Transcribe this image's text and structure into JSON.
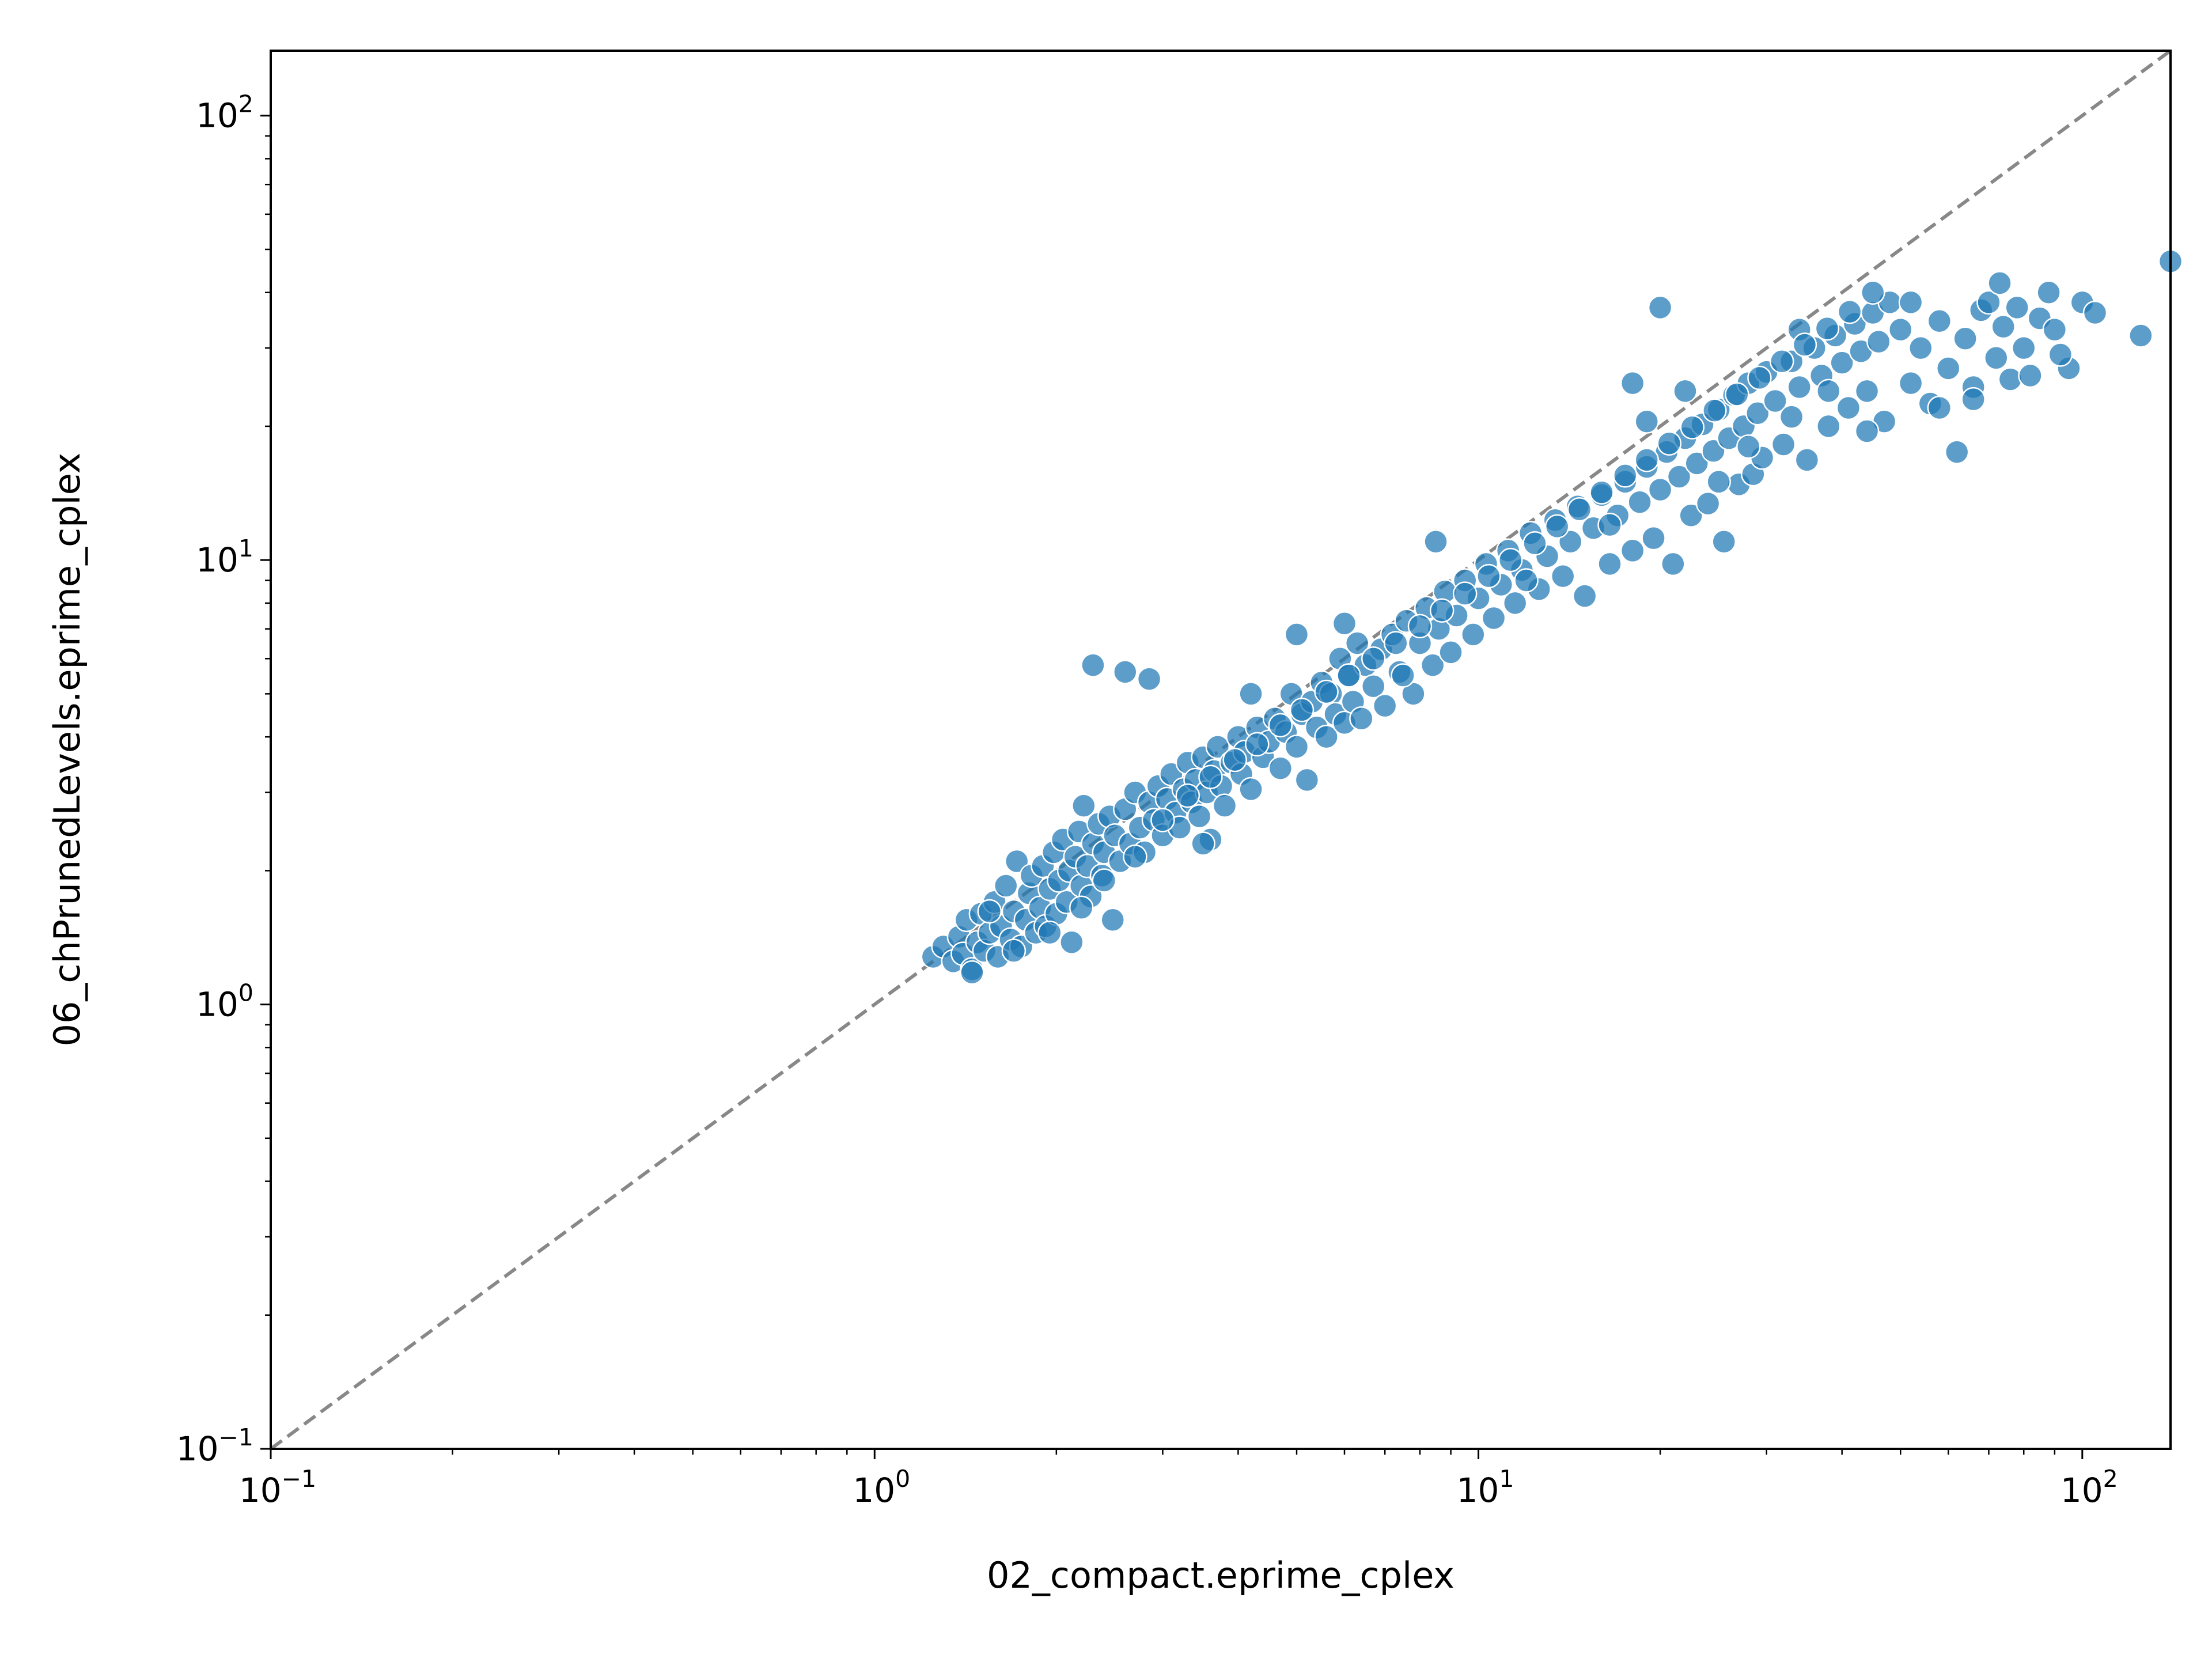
{
  "chart_data": {
    "type": "scatter",
    "title": "",
    "xlabel": "02_compact.eprime_cplex",
    "ylabel": "06_chPrunedLevels.eprime_cplex",
    "xscale": "log",
    "yscale": "log",
    "xlim": [
      0.1,
      140
    ],
    "ylim": [
      0.1,
      140
    ],
    "grid": false,
    "legend": "none",
    "x_ticks": [
      {
        "value": 0.1,
        "base": "10",
        "exp": "−1"
      },
      {
        "value": 1,
        "base": "10",
        "exp": "0"
      },
      {
        "value": 10,
        "base": "10",
        "exp": "1"
      },
      {
        "value": 100,
        "base": "10",
        "exp": "2"
      }
    ],
    "y_ticks": [
      {
        "value": 0.1,
        "base": "10",
        "exp": "−1"
      },
      {
        "value": 1,
        "base": "10",
        "exp": "0"
      },
      {
        "value": 10,
        "base": "10",
        "exp": "1"
      },
      {
        "value": 100,
        "base": "10",
        "exp": "2"
      }
    ],
    "reference_line": {
      "style": "dashed",
      "color": "#888888",
      "from": [
        0.1,
        0.1
      ],
      "to": [
        140,
        140
      ]
    },
    "marker_color": "#1f77b4",
    "marker_edge_color": "#ffffff",
    "points": [
      [
        1.25,
        1.28
      ],
      [
        1.3,
        1.35
      ],
      [
        1.35,
        1.25
      ],
      [
        1.38,
        1.42
      ],
      [
        1.4,
        1.3
      ],
      [
        1.42,
        1.55
      ],
      [
        1.45,
        1.2
      ],
      [
        1.48,
        1.38
      ],
      [
        1.5,
        1.6
      ],
      [
        1.52,
        1.32
      ],
      [
        1.55,
        1.45
      ],
      [
        1.58,
        1.7
      ],
      [
        1.6,
        1.28
      ],
      [
        1.62,
        1.5
      ],
      [
        1.65,
        1.85
      ],
      [
        1.68,
        1.4
      ],
      [
        1.7,
        1.62
      ],
      [
        1.72,
        2.1
      ],
      [
        1.75,
        1.35
      ],
      [
        1.78,
        1.55
      ],
      [
        1.8,
        1.78
      ],
      [
        1.82,
        1.95
      ],
      [
        1.85,
        1.45
      ],
      [
        1.88,
        1.65
      ],
      [
        1.9,
        2.05
      ],
      [
        1.92,
        1.5
      ],
      [
        1.95,
        1.82
      ],
      [
        1.98,
        2.2
      ],
      [
        2.0,
        1.6
      ],
      [
        2.02,
        1.9
      ],
      [
        2.05,
        2.35
      ],
      [
        2.08,
        1.7
      ],
      [
        2.1,
        2.0
      ],
      [
        2.12,
        1.38
      ],
      [
        2.15,
        2.15
      ],
      [
        2.18,
        2.45
      ],
      [
        2.2,
        1.85
      ],
      [
        2.22,
        2.8
      ],
      [
        2.25,
        2.05
      ],
      [
        2.28,
        1.75
      ],
      [
        2.3,
        2.3
      ],
      [
        2.35,
        2.55
      ],
      [
        2.38,
        1.95
      ],
      [
        2.4,
        2.2
      ],
      [
        2.45,
        2.65
      ],
      [
        2.48,
        1.55
      ],
      [
        2.5,
        2.4
      ],
      [
        2.55,
        2.1
      ],
      [
        2.6,
        2.75
      ],
      [
        2.65,
        2.3
      ],
      [
        2.7,
        3.0
      ],
      [
        2.75,
        2.5
      ],
      [
        2.8,
        2.2
      ],
      [
        2.85,
        2.85
      ],
      [
        2.9,
        2.6
      ],
      [
        2.95,
        3.1
      ],
      [
        3.0,
        2.4
      ],
      [
        3.05,
        2.9
      ],
      [
        3.1,
        3.3
      ],
      [
        3.15,
        2.7
      ],
      [
        3.2,
        2.5
      ],
      [
        3.25,
        3.05
      ],
      [
        3.3,
        3.5
      ],
      [
        3.35,
        2.85
      ],
      [
        3.4,
        3.2
      ],
      [
        3.45,
        2.65
      ],
      [
        3.5,
        3.6
      ],
      [
        3.55,
        3.0
      ],
      [
        3.6,
        2.35
      ],
      [
        3.65,
        3.35
      ],
      [
        3.7,
        3.8
      ],
      [
        3.75,
        3.1
      ],
      [
        3.8,
        2.8
      ],
      [
        3.9,
        3.5
      ],
      [
        4.0,
        4.0
      ],
      [
        4.05,
        3.3
      ],
      [
        4.1,
        3.7
      ],
      [
        4.2,
        3.05
      ],
      [
        4.3,
        4.2
      ],
      [
        4.4,
        3.6
      ],
      [
        4.5,
        3.9
      ],
      [
        4.6,
        4.4
      ],
      [
        4.7,
        3.4
      ],
      [
        4.8,
        4.1
      ],
      [
        4.9,
        5.0
      ],
      [
        5.0,
        3.8
      ],
      [
        5.1,
        4.5
      ],
      [
        5.2,
        3.2
      ],
      [
        5.3,
        4.8
      ],
      [
        5.4,
        4.2
      ],
      [
        5.5,
        5.3
      ],
      [
        5.6,
        4.0
      ],
      [
        5.7,
        5.0
      ],
      [
        5.8,
        4.5
      ],
      [
        5.9,
        6.0
      ],
      [
        6.0,
        4.3
      ],
      [
        6.1,
        5.5
      ],
      [
        6.2,
        4.8
      ],
      [
        6.3,
        6.5
      ],
      [
        6.4,
        4.4
      ],
      [
        6.5,
        5.8
      ],
      [
        6.7,
        5.2
      ],
      [
        6.9,
        6.3
      ],
      [
        7.0,
        4.7
      ],
      [
        7.2,
        6.8
      ],
      [
        7.4,
        5.6
      ],
      [
        7.6,
        7.3
      ],
      [
        7.8,
        5.0
      ],
      [
        8.0,
        6.5
      ],
      [
        8.2,
        7.8
      ],
      [
        8.4,
        5.8
      ],
      [
        8.6,
        7.0
      ],
      [
        8.8,
        8.5
      ],
      [
        9.0,
        6.2
      ],
      [
        9.2,
        7.5
      ],
      [
        9.5,
        9.0
      ],
      [
        9.8,
        6.8
      ],
      [
        10.0,
        8.2
      ],
      [
        10.3,
        9.8
      ],
      [
        10.6,
        7.4
      ],
      [
        10.9,
        8.8
      ],
      [
        11.2,
        10.5
      ],
      [
        11.5,
        8.0
      ],
      [
        11.8,
        9.5
      ],
      [
        12.2,
        11.5
      ],
      [
        12.6,
        8.6
      ],
      [
        13.0,
        10.2
      ],
      [
        13.4,
        12.3
      ],
      [
        13.8,
        9.2
      ],
      [
        14.2,
        11.0
      ],
      [
        14.6,
        13.2
      ],
      [
        15.0,
        8.3
      ],
      [
        15.5,
        11.8
      ],
      [
        16.0,
        14.0
      ],
      [
        16.5,
        9.8
      ],
      [
        17.0,
        12.6
      ],
      [
        17.5,
        15.0
      ],
      [
        18.0,
        10.5
      ],
      [
        18.5,
        13.5
      ],
      [
        19.0,
        16.2
      ],
      [
        19.5,
        11.2
      ],
      [
        20.0,
        14.4
      ],
      [
        20.5,
        17.5
      ],
      [
        21.0,
        9.8
      ],
      [
        21.5,
        15.4
      ],
      [
        22.0,
        18.8
      ],
      [
        22.5,
        12.6
      ],
      [
        23.0,
        16.5
      ],
      [
        23.5,
        20.2
      ],
      [
        24.0,
        13.4
      ],
      [
        24.5,
        17.6
      ],
      [
        25.0,
        21.8
      ],
      [
        25.5,
        11.0
      ],
      [
        26.0,
        18.8
      ],
      [
        26.5,
        23.5
      ],
      [
        27.0,
        14.8
      ],
      [
        27.5,
        20.0
      ],
      [
        28.0,
        25.0
      ],
      [
        28.5,
        15.6
      ],
      [
        29.0,
        21.4
      ],
      [
        29.5,
        17.0
      ],
      [
        30.0,
        26.5
      ],
      [
        31.0,
        22.8
      ],
      [
        32.0,
        18.2
      ],
      [
        33.0,
        28.0
      ],
      [
        34.0,
        24.5
      ],
      [
        35.0,
        16.8
      ],
      [
        36.0,
        30.0
      ],
      [
        37.0,
        26.0
      ],
      [
        38.0,
        20.0
      ],
      [
        39.0,
        32.0
      ],
      [
        40.0,
        27.8
      ],
      [
        41.0,
        22.0
      ],
      [
        42.0,
        34.0
      ],
      [
        43.0,
        29.5
      ],
      [
        44.0,
        24.0
      ],
      [
        45.0,
        36.0
      ],
      [
        46.0,
        31.0
      ],
      [
        47.0,
        20.5
      ],
      [
        48.0,
        38.0
      ],
      [
        50.0,
        33.0
      ],
      [
        52.0,
        25.0
      ],
      [
        54.0,
        30.0
      ],
      [
        56.0,
        22.5
      ],
      [
        58.0,
        34.5
      ],
      [
        60.0,
        27.0
      ],
      [
        62.0,
        17.5
      ],
      [
        64.0,
        31.5
      ],
      [
        66.0,
        24.5
      ],
      [
        68.0,
        36.5
      ],
      [
        70.0,
        38.0
      ],
      [
        72.0,
        28.5
      ],
      [
        74.0,
        33.5
      ],
      [
        76.0,
        25.5
      ],
      [
        78.0,
        37.0
      ],
      [
        80.0,
        30.0
      ],
      [
        85.0,
        35.0
      ],
      [
        88.0,
        40.0
      ],
      [
        90.0,
        33.0
      ],
      [
        95.0,
        27.0
      ],
      [
        100.0,
        38.0
      ],
      [
        105.0,
        36.0
      ],
      [
        125.0,
        32.0
      ],
      [
        140.0,
        47.0
      ],
      [
        73.0,
        42.0
      ],
      [
        20.0,
        37.0
      ],
      [
        18.0,
        25.0
      ],
      [
        2.3,
        5.8
      ],
      [
        2.6,
        5.6
      ],
      [
        2.85,
        5.4
      ],
      [
        5.0,
        6.8
      ],
      [
        6.0,
        7.2
      ],
      [
        4.2,
        5.0
      ],
      [
        8.5,
        11.0
      ],
      [
        19.0,
        20.5
      ],
      [
        22.0,
        24.0
      ],
      [
        34.0,
        33.0
      ],
      [
        45.0,
        40.0
      ],
      [
        52.0,
        38.0
      ],
      [
        1.45,
        1.18
      ],
      [
        1.55,
        1.62
      ],
      [
        1.7,
        1.32
      ],
      [
        1.95,
        1.45
      ],
      [
        2.2,
        1.65
      ],
      [
        2.4,
        1.9
      ],
      [
        2.7,
        2.15
      ],
      [
        3.0,
        2.6
      ],
      [
        3.3,
        2.95
      ],
      [
        3.6,
        3.25
      ],
      [
        3.95,
        3.55
      ],
      [
        4.3,
        3.85
      ],
      [
        4.7,
        4.25
      ],
      [
        5.1,
        4.6
      ],
      [
        5.6,
        5.05
      ],
      [
        6.1,
        5.5
      ],
      [
        6.7,
        6.0
      ],
      [
        7.3,
        6.5
      ],
      [
        8.0,
        7.1
      ],
      [
        8.7,
        7.7
      ],
      [
        9.5,
        8.4
      ],
      [
        10.4,
        9.2
      ],
      [
        11.3,
        10.0
      ],
      [
        12.4,
        10.9
      ],
      [
        13.5,
        11.9
      ],
      [
        14.7,
        13.0
      ],
      [
        16.0,
        14.2
      ],
      [
        17.5,
        15.5
      ],
      [
        19.0,
        16.8
      ],
      [
        20.7,
        18.3
      ],
      [
        22.6,
        19.9
      ],
      [
        24.6,
        21.7
      ],
      [
        26.8,
        23.6
      ],
      [
        29.2,
        25.7
      ],
      [
        31.8,
        28.0
      ],
      [
        34.7,
        30.5
      ],
      [
        37.8,
        33.2
      ],
      [
        41.2,
        36.2
      ],
      [
        25.0,
        15.0
      ],
      [
        28.0,
        18.0
      ],
      [
        33.0,
        21.0
      ],
      [
        38.0,
        24.0
      ],
      [
        44.0,
        19.5
      ],
      [
        58.0,
        22.0
      ],
      [
        66.0,
        23.0
      ],
      [
        82.0,
        26.0
      ],
      [
        92.0,
        29.0
      ],
      [
        16.5,
        12.0
      ],
      [
        12.0,
        9.0
      ],
      [
        7.5,
        5.5
      ],
      [
        3.5,
        2.3
      ]
    ]
  }
}
